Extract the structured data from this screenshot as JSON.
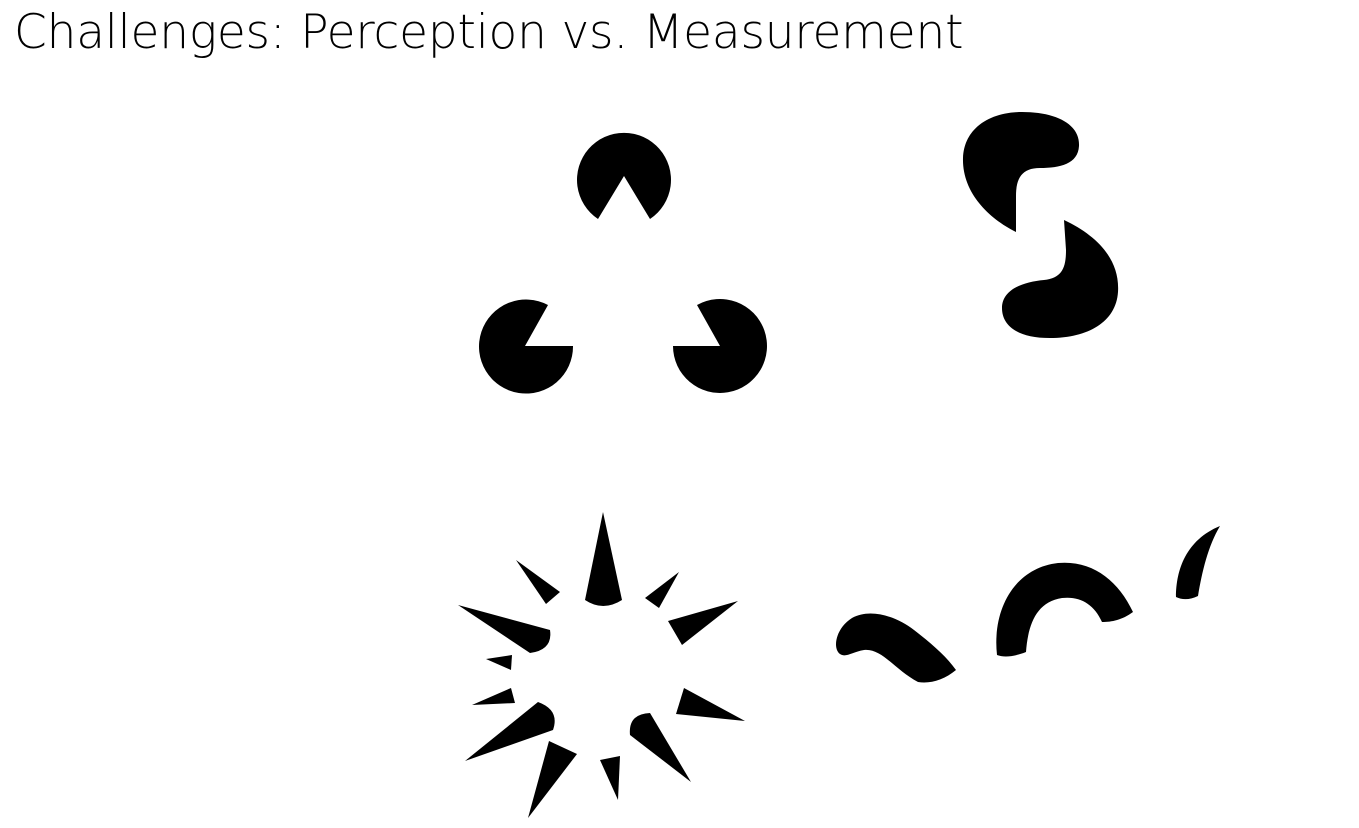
{
  "slide": {
    "title": "Challenges: Perception vs. Measurement"
  },
  "colors": {
    "background": "#ffffff",
    "text": "#000000",
    "shape_fill": "#000000"
  },
  "illustrations": [
    "kanizsa-triangle-figure",
    "illusory-curve-figure",
    "illusory-circle-starburst-figure",
    "illusory-curved-line-figure"
  ]
}
